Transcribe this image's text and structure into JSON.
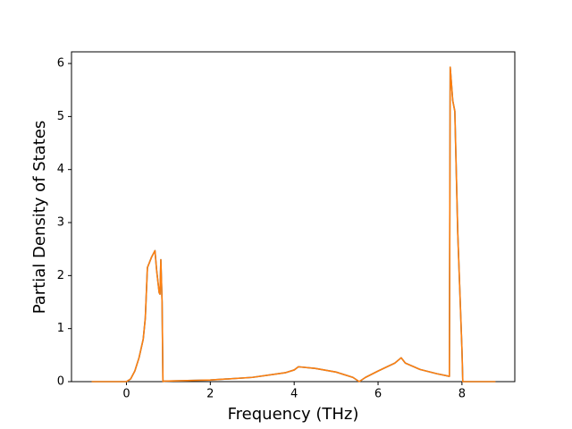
{
  "chart_data": {
    "type": "line",
    "xlabel": "Frequency (THz)",
    "ylabel": "Partial Density of States",
    "x": [
      -0.83,
      -0.6,
      -0.3,
      0,
      0.1,
      0.2,
      0.3,
      0.4,
      0.45,
      0.5,
      0.6,
      0.68,
      0.72,
      0.78,
      0.8,
      0.82,
      0.85,
      0.87,
      0.9,
      2,
      3,
      3.8,
      4.0,
      4.1,
      4.5,
      5,
      5.4,
      5.55,
      5.7,
      6,
      6.4,
      6.55,
      6.65,
      7,
      7.4,
      7.7,
      7.72,
      7.78,
      7.83,
      7.9,
      8.0,
      8.02,
      8.3,
      8.8
    ],
    "series": [
      {
        "color": "#1f77b4",
        "values": [
          0,
          0,
          0,
          0,
          0.05,
          0.2,
          0.45,
          0.8,
          1.2,
          2.15,
          2.35,
          2.47,
          2.1,
          1.68,
          1.65,
          2.3,
          1.5,
          0,
          0.01,
          0.03,
          0.08,
          0.17,
          0.22,
          0.28,
          0.25,
          0.18,
          0.08,
          0,
          0.08,
          0.2,
          0.35,
          0.45,
          0.35,
          0.23,
          0.15,
          0.1,
          5.93,
          5.3,
          5.1,
          2.8,
          0.6,
          0,
          0,
          0
        ]
      },
      {
        "color": "#ff7f0e",
        "values": [
          0,
          0,
          0,
          0,
          0.05,
          0.2,
          0.45,
          0.8,
          1.2,
          2.15,
          2.35,
          2.47,
          2.1,
          1.68,
          1.65,
          2.3,
          1.5,
          0,
          0.01,
          0.03,
          0.08,
          0.17,
          0.22,
          0.28,
          0.25,
          0.18,
          0.08,
          0,
          0.08,
          0.2,
          0.35,
          0.45,
          0.35,
          0.23,
          0.15,
          0.1,
          5.93,
          5.3,
          5.1,
          2.8,
          0.6,
          0,
          0,
          0
        ]
      }
    ],
    "xlim": [
      -1.31,
      9.26
    ],
    "ylim": [
      0,
      6.22
    ],
    "xticks": [
      0,
      2,
      4,
      6,
      8
    ],
    "yticks": [
      0,
      1,
      2,
      3,
      4,
      5,
      6
    ]
  }
}
